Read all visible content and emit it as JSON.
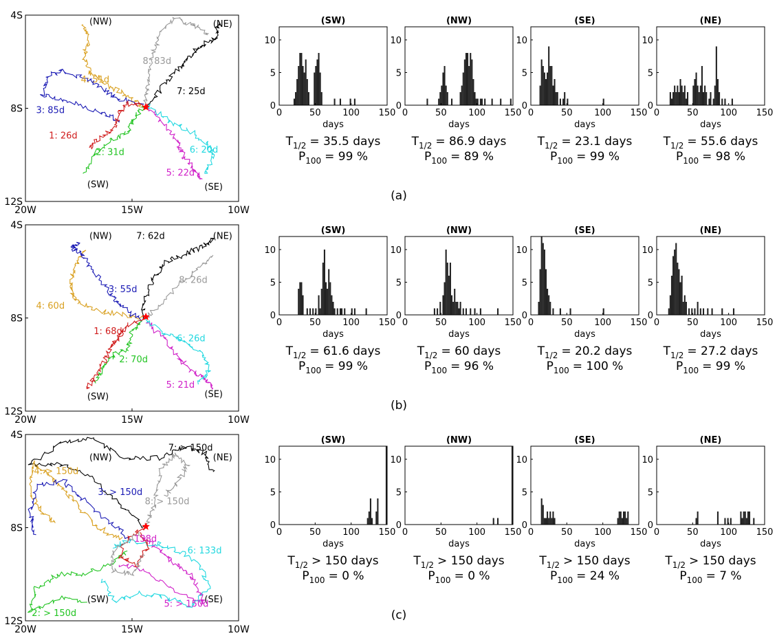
{
  "map_axes": {
    "x_ticks": [
      "20W",
      "15W",
      "10W"
    ],
    "y_ticks": [
      "4S",
      "8S",
      "12S"
    ]
  },
  "hist_axes": {
    "x_ticks": [
      "0",
      "50",
      "100",
      "150"
    ],
    "y_ticks": [
      "0",
      "5",
      "10"
    ],
    "xlabel": "days"
  },
  "stat_labels": {
    "t_main": "T",
    "t_sub": "1/2",
    "p_main": "P",
    "p_sub": "100"
  },
  "colors": {
    "1": "#d01c1c",
    "2": "#22c422",
    "3": "#1a1ab4",
    "4": "#d9a020",
    "5": "#d020c8",
    "6": "#22d8e0",
    "7": "#000000",
    "8": "#999999",
    "bar": "#222222",
    "start_star": "#ff0000"
  },
  "rows": [
    {
      "caption": "(a)",
      "map": {
        "corner_labels": [
          {
            "text": "(NW)",
            "lon": -17.0,
            "lat": -4.4
          },
          {
            "text": "(NE)",
            "lon": -11.2,
            "lat": -4.5
          },
          {
            "text": "(SW)",
            "lon": -17.1,
            "lat": -11.4
          },
          {
            "text": "(SE)",
            "lon": -11.6,
            "lat": -11.5
          }
        ],
        "track_labels": [
          {
            "text": "1: 26d",
            "color": "1",
            "lon": -18.9,
            "lat": -9.3
          },
          {
            "text": "2: 31d",
            "color": "2",
            "lon": -16.7,
            "lat": -10.0
          },
          {
            "text": "3: 85d",
            "color": "3",
            "lon": -19.5,
            "lat": -8.2
          },
          {
            "text": "4: 51d",
            "color": "4",
            "lon": -17.4,
            "lat": -6.9
          },
          {
            "text": "5: 22d",
            "color": "5",
            "lon": -13.4,
            "lat": -10.9
          },
          {
            "text": "6: 20d",
            "color": "6",
            "lon": -12.3,
            "lat": -9.9
          },
          {
            "text": "7: 25d",
            "color": "7",
            "lon": -12.9,
            "lat": -7.4
          },
          {
            "text": "8: 83d",
            "color": "8",
            "lon": -14.5,
            "lat": -6.1
          }
        ]
      },
      "hists": [
        {
          "title": "(SW)",
          "T": "= 35.5 days",
          "P": "= 99 %"
        },
        {
          "title": "(NW)",
          "T": "= 86.9 days",
          "P": "= 89 %"
        },
        {
          "title": "(SE)",
          "T": "= 23.1 days",
          "P": "= 99 %"
        },
        {
          "title": "(NE)",
          "T": "= 55.6 days",
          "P": "= 98 %"
        }
      ]
    },
    {
      "caption": "(b)",
      "map": {
        "corner_labels": [
          {
            "text": "(NW)",
            "lon": -17.0,
            "lat": -4.6
          },
          {
            "text": "(NE)",
            "lon": -11.2,
            "lat": -4.6
          },
          {
            "text": "(SW)",
            "lon": -17.1,
            "lat": -11.5
          },
          {
            "text": "(SE)",
            "lon": -11.6,
            "lat": -11.4
          }
        ],
        "track_labels": [
          {
            "text": "1: 68d",
            "color": "1",
            "lon": -16.8,
            "lat": -8.7
          },
          {
            "text": "2: 70d",
            "color": "2",
            "lon": -15.6,
            "lat": -9.9
          },
          {
            "text": "3: 55d",
            "color": "3",
            "lon": -16.1,
            "lat": -6.9
          },
          {
            "text": "4: 60d",
            "color": "4",
            "lon": -19.5,
            "lat": -7.6
          },
          {
            "text": "5: 21d",
            "color": "5",
            "lon": -13.4,
            "lat": -11.0
          },
          {
            "text": "6: 26d",
            "color": "6",
            "lon": -12.9,
            "lat": -9.0
          },
          {
            "text": "7: 62d",
            "color": "7",
            "lon": -14.8,
            "lat": -4.6
          },
          {
            "text": "8: 26d",
            "color": "8",
            "lon": -12.8,
            "lat": -6.5
          }
        ]
      },
      "hists": [
        {
          "title": "(SW)",
          "T": "= 61.6 days",
          "P": "= 99 %"
        },
        {
          "title": "(NW)",
          "T": "= 60 days",
          "P": "= 96 %"
        },
        {
          "title": "(SE)",
          "T": "= 20.2 days",
          "P": "= 100 %"
        },
        {
          "title": "(NE)",
          "T": "= 27.2 days",
          "P": "= 99 %"
        }
      ]
    },
    {
      "caption": "(c)",
      "map": {
        "corner_labels": [
          {
            "text": "(NW)",
            "lon": -17.0,
            "lat": -5.1
          },
          {
            "text": "(NE)",
            "lon": -11.2,
            "lat": -5.1
          },
          {
            "text": "(SW)",
            "lon": -17.1,
            "lat": -11.2
          },
          {
            "text": "(SE)",
            "lon": -11.6,
            "lat": -11.2
          }
        ],
        "track_labels": [
          {
            "text": "2: > 150d",
            "color": "2",
            "lon": -19.7,
            "lat": -11.8
          },
          {
            "text": "3: > 150d",
            "color": "3",
            "lon": -16.6,
            "lat": -6.6
          },
          {
            "text": "4: > 150d",
            "color": "4",
            "lon": -19.6,
            "lat": -5.7
          },
          {
            "text": "5: > 150d",
            "color": "5",
            "lon": -13.5,
            "lat": -11.4
          },
          {
            "text": "6: 133d",
            "color": "6",
            "lon": -12.4,
            "lat": -9.1
          },
          {
            "text": "7: > 150d",
            "color": "7",
            "lon": -13.3,
            "lat": -4.7
          },
          {
            "text": "8: > 150d",
            "color": "8",
            "lon": -14.4,
            "lat": -7.0
          },
          {
            "text": "138d",
            "color": "5",
            "lon": -14.9,
            "lat": -8.6
          }
        ]
      },
      "hists": [
        {
          "title": "(SW)",
          "T": "> 150 days",
          "P": "= 0 %"
        },
        {
          "title": "(NW)",
          "T": "> 150 days",
          "P": "= 0 %"
        },
        {
          "title": "(SE)",
          "T": "> 150 days",
          "P": "= 24 %"
        },
        {
          "title": "(NE)",
          "T": "> 150 days",
          "P": "= 7 %"
        }
      ]
    }
  ],
  "chart_data": [
    {
      "type": "bar",
      "panel": "(a)",
      "title": "(SW)",
      "xlabel": "days",
      "xlim": [
        0,
        150
      ],
      "ylim": [
        0,
        12
      ],
      "bin_width": 2,
      "x": [
        20,
        22,
        24,
        26,
        28,
        30,
        32,
        34,
        36,
        38,
        40,
        48,
        50,
        52,
        54,
        56,
        58,
        76,
        84,
        98,
        104
      ],
      "values": [
        1,
        2,
        4,
        6,
        8,
        8,
        6,
        5,
        7,
        4,
        2,
        5,
        6,
        7,
        8,
        5,
        2,
        1,
        1,
        1,
        1
      ]
    },
    {
      "type": "bar",
      "panel": "(a)",
      "title": "(NW)",
      "xlabel": "days",
      "xlim": [
        0,
        150
      ],
      "ylim": [
        0,
        12
      ],
      "bin_width": 2,
      "x": [
        30,
        46,
        48,
        50,
        52,
        54,
        56,
        58,
        64,
        76,
        78,
        80,
        82,
        84,
        86,
        88,
        90,
        92,
        94,
        96,
        98,
        100,
        104,
        106,
        110,
        120,
        132,
        146
      ],
      "values": [
        1,
        1,
        2,
        3,
        5,
        6,
        3,
        2,
        1,
        2,
        3,
        5,
        7,
        8,
        8,
        6,
        8,
        7,
        4,
        2,
        1,
        1,
        1,
        1,
        1,
        1,
        1,
        1
      ]
    },
    {
      "type": "bar",
      "panel": "(a)",
      "title": "(SE)",
      "xlabel": "days",
      "xlim": [
        0,
        150
      ],
      "ylim": [
        0,
        12
      ],
      "bin_width": 2,
      "x": [
        12,
        14,
        16,
        18,
        20,
        22,
        24,
        26,
        28,
        30,
        32,
        34,
        36,
        40,
        44,
        46,
        50,
        100
      ],
      "values": [
        3,
        7,
        6,
        5,
        4,
        5,
        9,
        6,
        6,
        3,
        4,
        2,
        2,
        1,
        1,
        2,
        1,
        1
      ]
    },
    {
      "type": "bar",
      "panel": "(a)",
      "title": "(NE)",
      "xlabel": "days",
      "xlim": [
        0,
        150
      ],
      "ylim": [
        0,
        12
      ],
      "bin_width": 2,
      "x": [
        18,
        20,
        22,
        24,
        26,
        28,
        30,
        32,
        34,
        36,
        38,
        40,
        42,
        50,
        52,
        54,
        56,
        58,
        60,
        62,
        64,
        66,
        68,
        72,
        74,
        78,
        80,
        82,
        84,
        86,
        90,
        94,
        104
      ],
      "values": [
        2,
        1,
        2,
        3,
        2,
        3,
        2,
        4,
        3,
        2,
        3,
        1,
        2,
        3,
        4,
        5,
        3,
        2,
        3,
        6,
        2,
        3,
        2,
        1,
        2,
        1,
        3,
        9,
        4,
        2,
        1,
        1,
        1
      ]
    },
    {
      "type": "bar",
      "panel": "(b)",
      "title": "(SW)",
      "xlabel": "days",
      "xlim": [
        0,
        150
      ],
      "ylim": [
        0,
        12
      ],
      "bin_width": 2,
      "x": [
        26,
        28,
        30,
        32,
        38,
        42,
        46,
        50,
        54,
        56,
        58,
        60,
        62,
        64,
        66,
        68,
        70,
        72,
        74,
        76,
        80,
        84,
        86,
        90,
        100,
        104,
        120
      ],
      "values": [
        4,
        5,
        5,
        3,
        1,
        1,
        1,
        1,
        3,
        1,
        4,
        8,
        10,
        5,
        4,
        7,
        5,
        3,
        2,
        1,
        1,
        1,
        1,
        1,
        1,
        1,
        1
      ]
    },
    {
      "type": "bar",
      "panel": "(b)",
      "title": "(NW)",
      "xlabel": "days",
      "xlim": [
        0,
        150
      ],
      "ylim": [
        0,
        12
      ],
      "bin_width": 2,
      "x": [
        40,
        44,
        48,
        52,
        54,
        56,
        58,
        60,
        62,
        64,
        66,
        68,
        70,
        72,
        74,
        76,
        80,
        84,
        90,
        96,
        104,
        128
      ],
      "values": [
        1,
        1,
        2,
        3,
        5,
        10,
        8,
        6,
        8,
        3,
        2,
        4,
        2,
        2,
        1,
        2,
        1,
        1,
        1,
        1,
        1,
        1
      ]
    },
    {
      "type": "bar",
      "panel": "(b)",
      "title": "(SE)",
      "xlabel": "days",
      "xlim": [
        0,
        150
      ],
      "ylim": [
        0,
        12
      ],
      "bin_width": 2,
      "x": [
        10,
        12,
        14,
        16,
        18,
        20,
        22,
        24,
        26,
        30,
        40,
        54,
        100
      ],
      "values": [
        2,
        7,
        12,
        11,
        10,
        7,
        4,
        3,
        2,
        1,
        1,
        1,
        1
      ]
    },
    {
      "type": "bar",
      "panel": "(b)",
      "title": "(NE)",
      "xlabel": "days",
      "xlim": [
        0,
        150
      ],
      "ylim": [
        0,
        12
      ],
      "bin_width": 2,
      "x": [
        16,
        18,
        20,
        22,
        24,
        26,
        28,
        30,
        32,
        34,
        36,
        38,
        40,
        44,
        48,
        52,
        56,
        60,
        64,
        70,
        76,
        90,
        106
      ],
      "values": [
        1,
        3,
        6,
        9,
        10,
        11,
        8,
        7,
        5,
        6,
        2,
        3,
        2,
        1,
        1,
        1,
        2,
        1,
        1,
        1,
        1,
        1,
        1
      ]
    },
    {
      "type": "bar",
      "panel": "(c)",
      "title": "(SW)",
      "xlabel": "days",
      "xlim": [
        0,
        150
      ],
      "ylim": [
        0,
        12
      ],
      "bin_width": 2,
      "x": [
        122,
        124,
        126,
        128,
        134,
        136,
        148
      ],
      "values": [
        1,
        2,
        4,
        1,
        2,
        4,
        12
      ]
    },
    {
      "type": "bar",
      "panel": "(c)",
      "title": "(NW)",
      "xlabel": "days",
      "xlim": [
        0,
        150
      ],
      "ylim": [
        0,
        12
      ],
      "bin_width": 2,
      "x": [
        122,
        128,
        148
      ],
      "values": [
        1,
        1,
        12
      ]
    },
    {
      "type": "bar",
      "panel": "(c)",
      "title": "(SE)",
      "xlabel": "days",
      "xlim": [
        0,
        150
      ],
      "ylim": [
        0,
        12
      ],
      "bin_width": 2,
      "x": [
        14,
        16,
        18,
        20,
        22,
        24,
        26,
        28,
        30,
        32,
        120,
        122,
        124,
        126,
        128,
        130,
        132,
        134
      ],
      "values": [
        4,
        3,
        1,
        1,
        2,
        1,
        2,
        1,
        2,
        1,
        1,
        2,
        2,
        1,
        2,
        2,
        1,
        2
      ]
    },
    {
      "type": "bar",
      "panel": "(c)",
      "title": "(NE)",
      "xlabel": "days",
      "xlim": [
        0,
        150
      ],
      "ylim": [
        0,
        12
      ],
      "bin_width": 2,
      "x": [
        54,
        56,
        84,
        94,
        98,
        102,
        116,
        118,
        120,
        122,
        124,
        126,
        128,
        134
      ],
      "values": [
        1,
        2,
        2,
        1,
        1,
        1,
        2,
        1,
        2,
        2,
        1,
        2,
        2,
        1
      ]
    }
  ]
}
